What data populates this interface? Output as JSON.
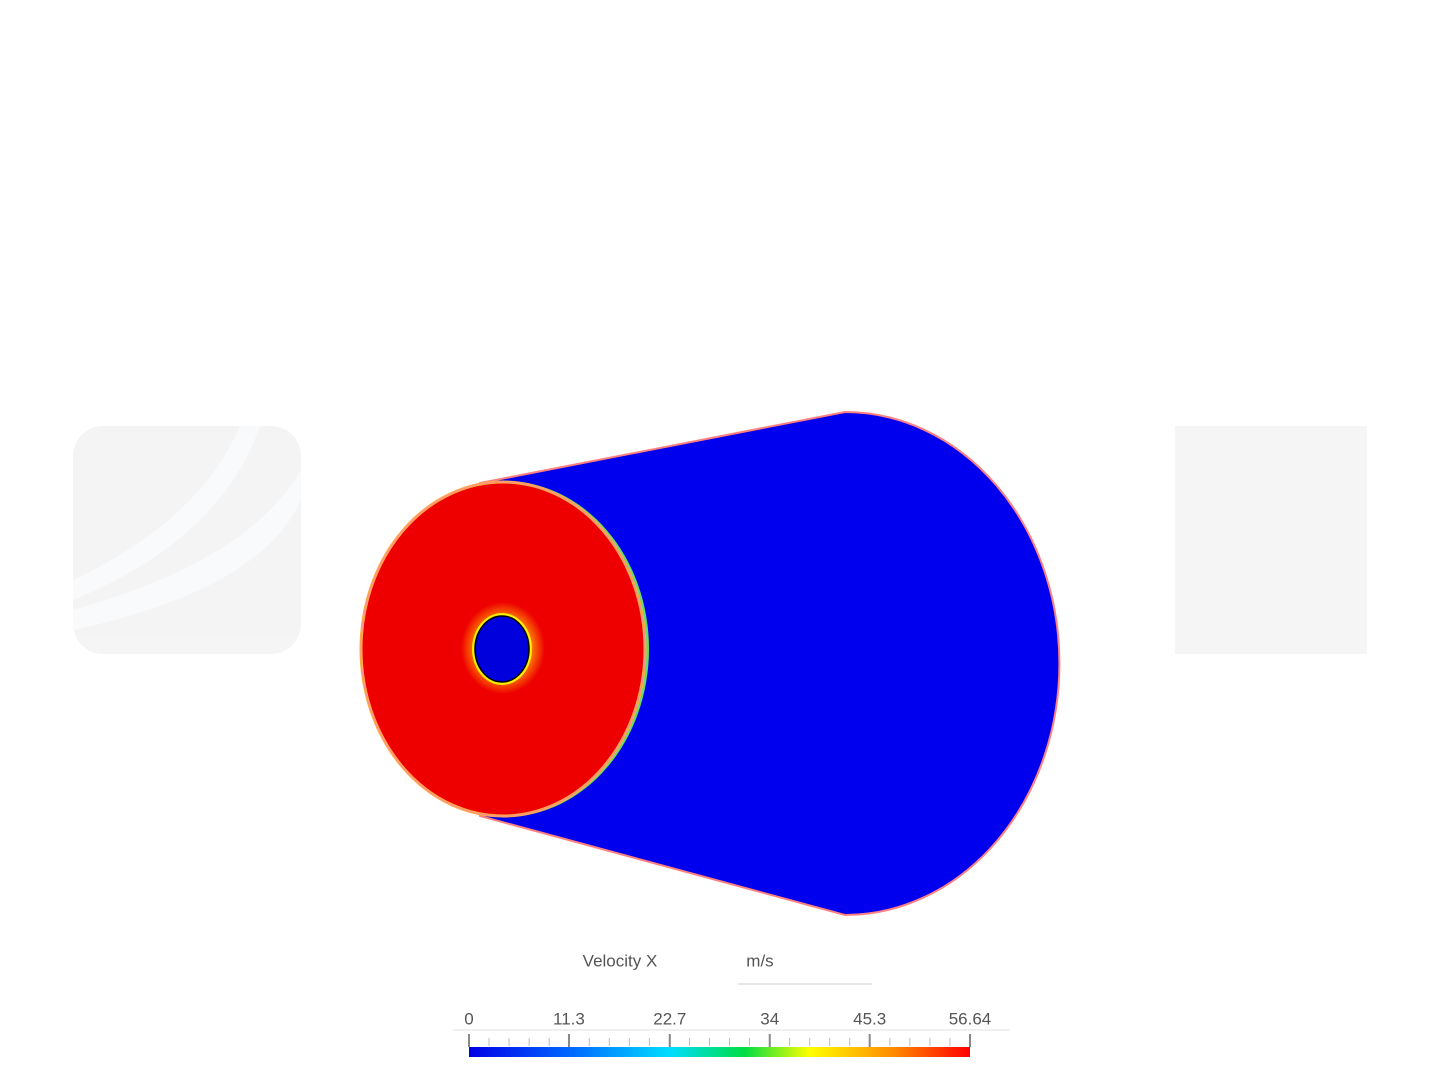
{
  "legend": {
    "title": "Velocity X",
    "unit": "m/s",
    "range": [
      0,
      56.64
    ],
    "ticks": [
      0,
      11.3,
      22.7,
      34,
      45.3,
      56.64
    ]
  }
}
